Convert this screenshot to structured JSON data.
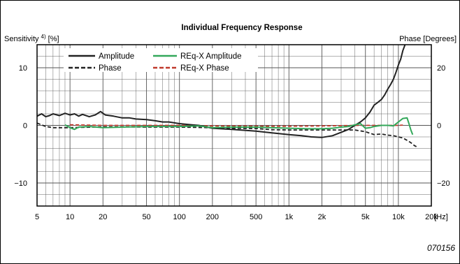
{
  "chart_data": {
    "type": "line",
    "title": "Individual Frequency Response",
    "ylabel_left": "Sensitivity",
    "ylabel_left_superscript": "4)",
    "ylabel_left_unit": "[%]",
    "ylabel_right": "Phase [Degrees]",
    "xlabel_unit": "[Hz]",
    "x_scale": "log",
    "xlim": [
      5,
      20000
    ],
    "ylim_left": [
      -14,
      14
    ],
    "ylim_right": [
      -28,
      28
    ],
    "grid": true,
    "legend_position": "top-left",
    "x_ticks": [
      {
        "value": 5,
        "label": "5"
      },
      {
        "value": 10,
        "label": "10"
      },
      {
        "value": 20,
        "label": "20"
      },
      {
        "value": 50,
        "label": "50"
      },
      {
        "value": 100,
        "label": "100"
      },
      {
        "value": 200,
        "label": "200"
      },
      {
        "value": 500,
        "label": "500"
      },
      {
        "value": 1000,
        "label": "1k"
      },
      {
        "value": 2000,
        "label": "2k"
      },
      {
        "value": 5000,
        "label": "5k"
      },
      {
        "value": 10000,
        "label": "10k"
      },
      {
        "value": 20000,
        "label": "20k"
      }
    ],
    "y_ticks_left": [
      {
        "value": 10,
        "label": "10"
      },
      {
        "value": 0,
        "label": "0"
      },
      {
        "value": -10,
        "label": "−10"
      }
    ],
    "y_ticks_right": [
      {
        "value": 20,
        "label": "20"
      },
      {
        "value": 0,
        "label": "0"
      },
      {
        "value": -20,
        "label": "−20"
      }
    ],
    "series": [
      {
        "name": "Amplitude",
        "color": "#222222",
        "dash": "solid",
        "axis": "left",
        "points": [
          [
            5,
            1.6
          ],
          [
            5.5,
            2.0
          ],
          [
            6,
            1.5
          ],
          [
            6.5,
            1.7
          ],
          [
            7,
            2.0
          ],
          [
            8,
            1.7
          ],
          [
            9,
            2.1
          ],
          [
            10,
            1.8
          ],
          [
            11,
            2.0
          ],
          [
            12,
            1.6
          ],
          [
            13,
            1.9
          ],
          [
            15,
            1.5
          ],
          [
            17,
            1.8
          ],
          [
            19,
            2.4
          ],
          [
            21,
            1.8
          ],
          [
            25,
            1.6
          ],
          [
            30,
            1.3
          ],
          [
            35,
            1.3
          ],
          [
            40,
            1.1
          ],
          [
            50,
            1.0
          ],
          [
            60,
            0.8
          ],
          [
            70,
            0.6
          ],
          [
            80,
            0.6
          ],
          [
            100,
            0.3
          ],
          [
            130,
            0.1
          ],
          [
            150,
            0.0
          ],
          [
            170,
            -0.2
          ],
          [
            200,
            -0.5
          ],
          [
            300,
            -0.7
          ],
          [
            500,
            -1.0
          ],
          [
            700,
            -1.3
          ],
          [
            1000,
            -1.6
          ],
          [
            1300,
            -1.8
          ],
          [
            1600,
            -2.0
          ],
          [
            2000,
            -2.1
          ],
          [
            2500,
            -1.8
          ],
          [
            3000,
            -1.2
          ],
          [
            3500,
            -0.7
          ],
          [
            4000,
            0.0
          ],
          [
            4500,
            0.6
          ],
          [
            5000,
            1.3
          ],
          [
            5500,
            2.3
          ],
          [
            6000,
            3.5
          ],
          [
            6500,
            4.0
          ],
          [
            7000,
            4.5
          ],
          [
            7500,
            5.3
          ],
          [
            8000,
            6.3
          ],
          [
            8500,
            7.1
          ],
          [
            9000,
            8.0
          ],
          [
            9500,
            9.2
          ],
          [
            10000,
            10.5
          ],
          [
            10500,
            11.5
          ],
          [
            11000,
            13.0
          ],
          [
            11500,
            14.0
          ]
        ]
      },
      {
        "name": "Phase",
        "color": "#222222",
        "dash": "dashed",
        "axis": "right",
        "points": [
          [
            5,
            0.8
          ],
          [
            6,
            -0.4
          ],
          [
            7,
            -0.8
          ],
          [
            10,
            -0.8
          ],
          [
            20,
            -0.5
          ],
          [
            30,
            -0.5
          ],
          [
            50,
            -0.6
          ],
          [
            100,
            -0.6
          ],
          [
            200,
            -0.8
          ],
          [
            300,
            -1.0
          ],
          [
            500,
            -1.1
          ],
          [
            700,
            -1.5
          ],
          [
            1000,
            -1.6
          ],
          [
            1500,
            -1.6
          ],
          [
            2000,
            -1.6
          ],
          [
            3000,
            -1.6
          ],
          [
            4000,
            -1.6
          ],
          [
            5000,
            -2.2
          ],
          [
            6000,
            -3.2
          ],
          [
            7000,
            -3.0
          ],
          [
            8000,
            -3.4
          ],
          [
            9000,
            -3.6
          ],
          [
            10000,
            -4.0
          ],
          [
            11000,
            -4.4
          ],
          [
            12000,
            -5.2
          ],
          [
            13000,
            -6.0
          ],
          [
            14000,
            -7.0
          ],
          [
            15000,
            -7.6
          ]
        ]
      },
      {
        "name": "REq-X Amplitude",
        "color": "#33a85a",
        "dash": "solid",
        "axis": "left",
        "points": [
          [
            9,
            0.1
          ],
          [
            10,
            -0.4
          ],
          [
            11,
            -0.7
          ],
          [
            12,
            -0.3
          ],
          [
            15,
            -0.2
          ],
          [
            20,
            -0.4
          ],
          [
            30,
            -0.3
          ],
          [
            50,
            -0.2
          ],
          [
            100,
            -0.2
          ],
          [
            150,
            -0.1
          ],
          [
            200,
            -0.4
          ],
          [
            300,
            -0.3
          ],
          [
            500,
            -0.3
          ],
          [
            700,
            -0.4
          ],
          [
            1000,
            -0.5
          ],
          [
            1500,
            -0.6
          ],
          [
            2000,
            -0.6
          ],
          [
            2500,
            -0.5
          ],
          [
            3000,
            -0.3
          ],
          [
            3500,
            -0.2
          ],
          [
            4000,
            0.1
          ],
          [
            4500,
            0.3
          ],
          [
            5000,
            -0.5
          ],
          [
            5500,
            -0.4
          ],
          [
            6000,
            -0.2
          ],
          [
            7000,
            0.0
          ],
          [
            8000,
            0.0
          ],
          [
            9000,
            -0.1
          ],
          [
            10000,
            0.6
          ],
          [
            11000,
            1.2
          ],
          [
            12000,
            1.3
          ],
          [
            12500,
            0.3
          ],
          [
            13000,
            -0.8
          ],
          [
            13500,
            -1.6
          ]
        ]
      },
      {
        "name": "REq-X Phase",
        "color": "#c0392b",
        "dash": "dashed",
        "axis": "right",
        "points": [
          [
            10,
            0.2
          ],
          [
            20,
            0.0
          ],
          [
            50,
            0.0
          ],
          [
            100,
            0.0
          ],
          [
            200,
            -0.2
          ],
          [
            500,
            -0.3
          ],
          [
            1000,
            -0.3
          ],
          [
            2000,
            -0.2
          ],
          [
            3000,
            -0.1
          ],
          [
            4000,
            0.0
          ],
          [
            5000,
            0.0
          ],
          [
            6000,
            0.0
          ],
          [
            8000,
            0.0
          ],
          [
            10000,
            0.0
          ],
          [
            11000,
            0.1
          ]
        ]
      }
    ]
  },
  "figure_id": "070156"
}
